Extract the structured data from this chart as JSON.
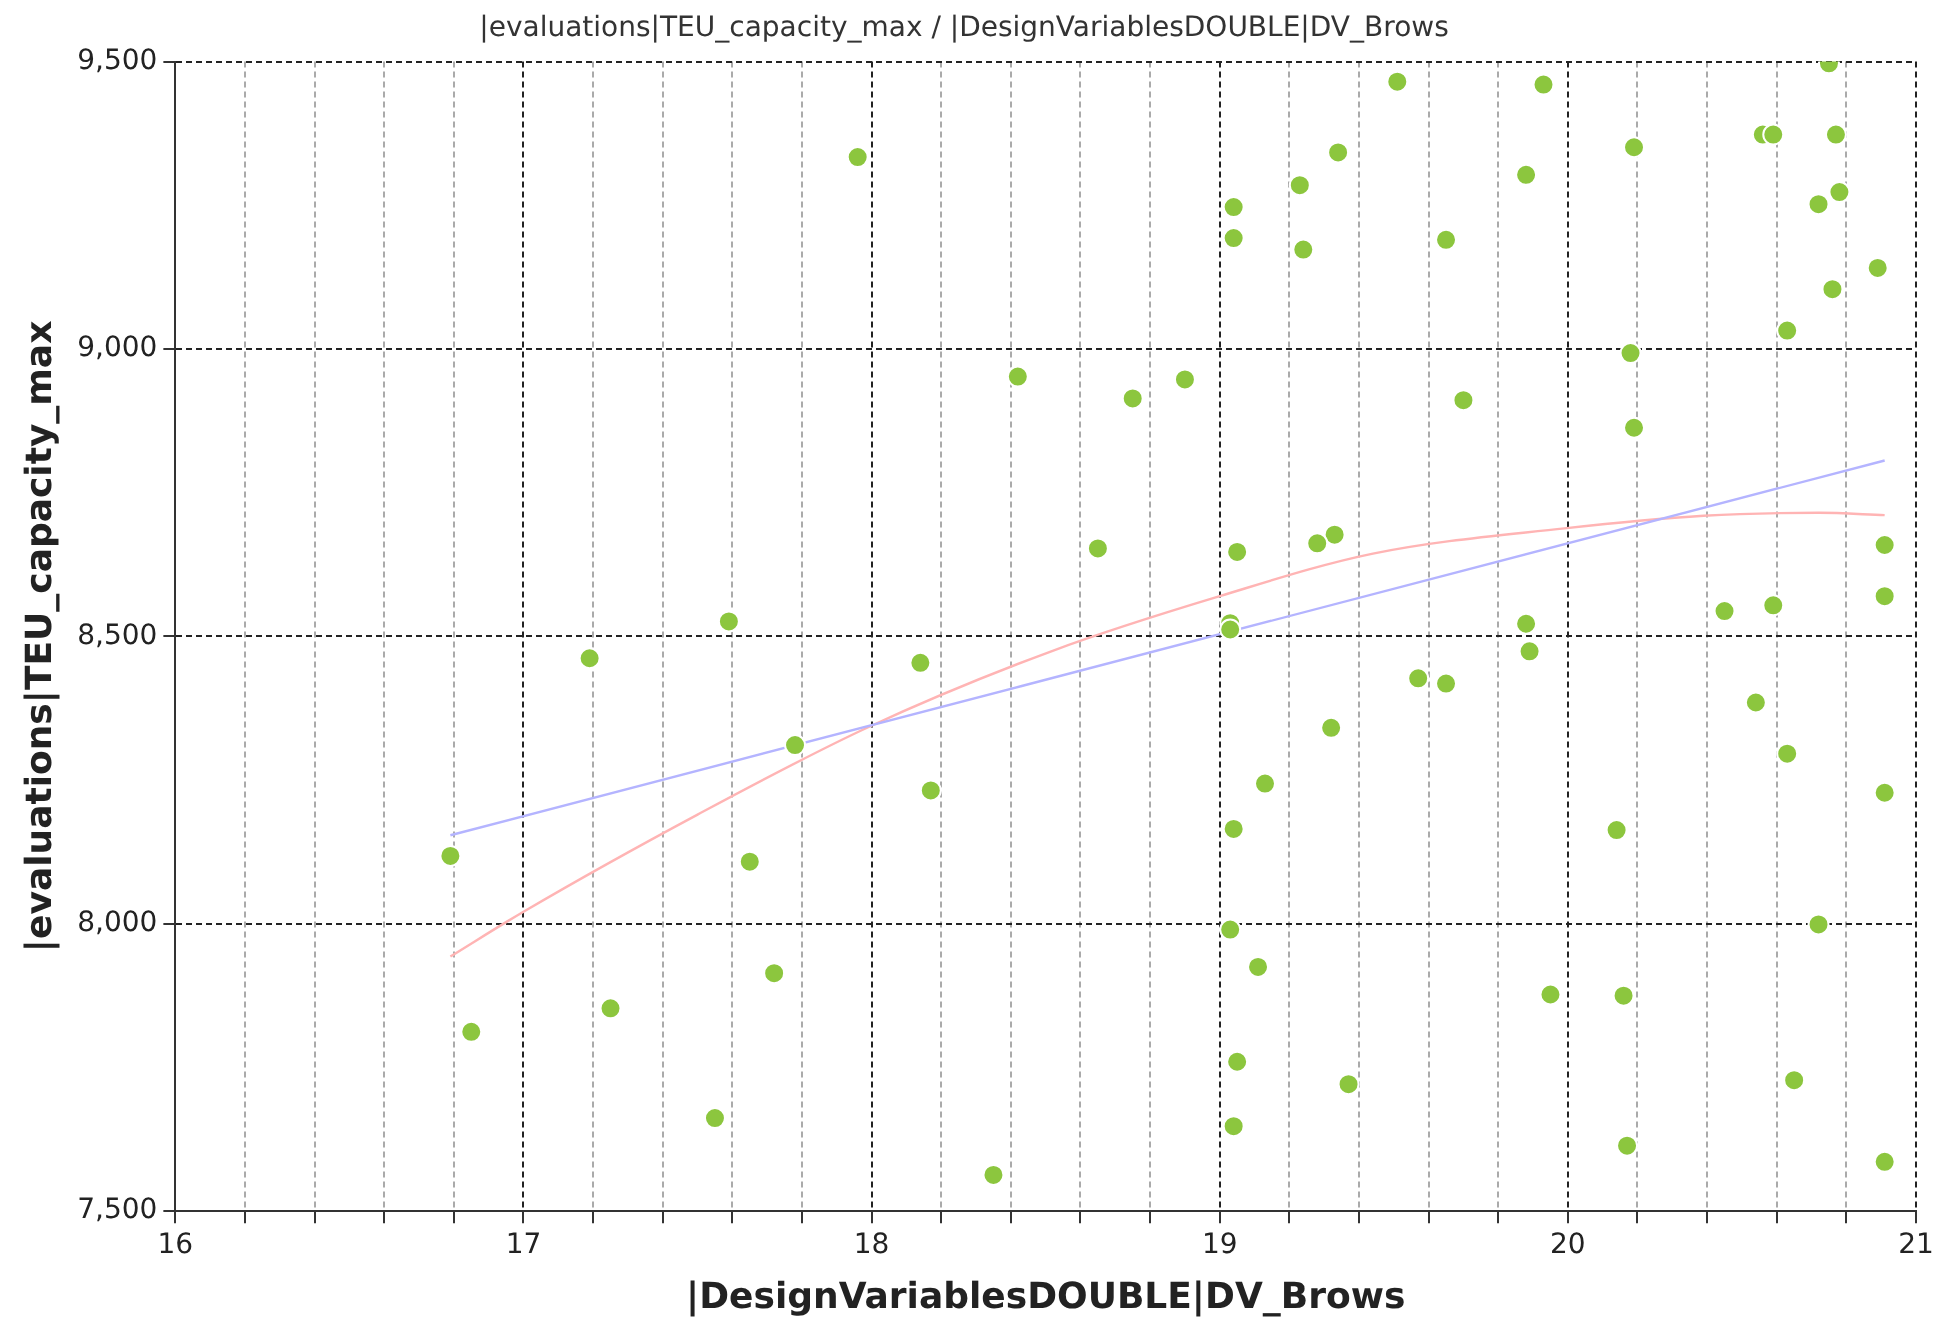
{
  "chart_data": {
    "type": "scatter",
    "title": "|evaluations|TEU_capacity_max / |DesignVariablesDOUBLE|DV_Brows",
    "xlabel": "|DesignVariablesDOUBLE|DV_Brows",
    "ylabel": "|evaluations|TEU_capacity_max",
    "xlim": [
      16,
      21
    ],
    "ylim": [
      7500,
      9500
    ],
    "xticks": [
      16,
      {
        "value": 16.2,
        "label": null
      },
      {
        "value": 16.4,
        "label": null
      },
      {
        "value": 16.6,
        "label": null
      },
      {
        "value": 16.8,
        "label": null
      },
      17,
      {
        "value": 17.2,
        "label": null
      },
      {
        "value": 17.4,
        "label": null
      },
      {
        "value": 17.6,
        "label": null
      },
      {
        "value": 17.8,
        "label": null
      },
      18,
      {
        "value": 18.2,
        "label": null
      },
      {
        "value": 18.4,
        "label": null
      },
      {
        "value": 18.6,
        "label": null
      },
      {
        "value": 18.8,
        "label": null
      },
      19,
      {
        "value": 19.2,
        "label": null
      },
      {
        "value": 19.4,
        "label": null
      },
      {
        "value": 19.6,
        "label": null
      },
      {
        "value": 19.8,
        "label": null
      },
      20,
      {
        "value": 20.2,
        "label": null
      },
      {
        "value": 20.4,
        "label": null
      },
      {
        "value": 20.6,
        "label": null
      },
      {
        "value": 20.8,
        "label": null
      },
      21
    ],
    "yticks": [
      {
        "value": 7500,
        "label": "7,500"
      },
      {
        "value": 8000,
        "label": "8,000"
      },
      {
        "value": 8500,
        "label": "8,500"
      },
      {
        "value": 9000,
        "label": "9,000"
      },
      {
        "value": 9500,
        "label": "9,500"
      }
    ],
    "grid": true,
    "legend": false,
    "series": [
      {
        "color": "#8cc63e",
        "marker": "circle",
        "x": [
          17.96,
          18.42,
          17.59,
          17.19,
          18.14,
          17.78,
          18.17,
          16.79,
          17.65,
          17.72,
          17.25,
          16.85,
          17.55,
          18.35,
          20.75,
          19.51,
          19.93,
          20.56,
          20.59,
          20.77,
          20.19,
          19.34,
          19.88,
          19.23,
          19.04,
          20.78,
          20.72,
          19.04,
          19.65,
          19.24,
          20.89,
          20.76,
          20.63,
          20.18,
          18.9,
          18.75,
          19.7,
          20.19,
          18.65,
          19.05,
          19.33,
          19.28,
          20.91,
          20.91,
          20.45,
          20.59,
          19.03,
          19.03,
          19.88,
          19.89,
          19.57,
          19.65,
          20.54,
          19.32,
          20.63,
          20.91,
          19.13,
          19.04,
          20.14,
          19.03,
          20.72,
          19.11,
          19.95,
          20.16,
          19.05,
          19.37,
          20.65,
          19.04,
          20.17,
          20.91
        ],
        "values": [
          9334,
          8952,
          8526,
          8462,
          8454,
          8311,
          8232,
          8118,
          8108,
          7914,
          7853,
          7812,
          7662,
          7563,
          9497,
          9465,
          9460,
          9373,
          9373,
          9373,
          9351,
          9342,
          9303,
          9285,
          9247,
          9273,
          9252,
          9193,
          9190,
          9173,
          9141,
          9104,
          9032,
          8993,
          8947,
          8914,
          8911,
          8863,
          8653,
          8647,
          8677,
          8662,
          8659,
          8570,
          8544,
          8554,
          8523,
          8512,
          8522,
          8474,
          8427,
          8418,
          8385,
          8341,
          8296,
          8228,
          8244,
          8165,
          8163,
          7990,
          7999,
          7925,
          7877,
          7875,
          7760,
          7721,
          7728,
          7648,
          7614,
          7586
        ]
      },
      {
        "type": "line",
        "color": "#b4b4ff",
        "marker": "none",
        "x": [
          16.79,
          20.91
        ],
        "values": [
          8154,
          8806
        ]
      },
      {
        "type": "line",
        "color": "#ffb4b4",
        "marker": "none",
        "x": [
          16.79,
          17.0,
          17.5,
          17.99,
          18.52,
          19.0,
          19.44,
          19.99,
          20.39,
          20.72,
          20.91
        ],
        "values": [
          7943,
          8021,
          8190,
          8342,
          8475,
          8570,
          8644,
          8688,
          8710,
          8715,
          8711
        ]
      }
    ]
  }
}
